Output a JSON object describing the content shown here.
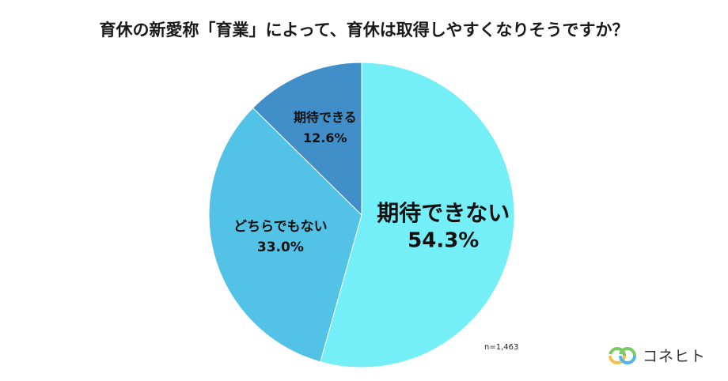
{
  "title": "育休の新愛称「育業」によって、育休は取得しやすくなりそうですか？",
  "note": "n=1,463",
  "brand": "コネヒト",
  "chart_data": {
    "type": "pie",
    "title": "育休の新愛称「育業」によって、育休は取得しやすくなりそうですか？",
    "slices": [
      {
        "label": "期待できない",
        "value": 54.3,
        "display": "54.3%",
        "color": "#74EFF8"
      },
      {
        "label": "どちらでもない",
        "value": 33.0,
        "display": "33.0%",
        "color": "#52C2E6"
      },
      {
        "label": "期待できる",
        "value": 12.6,
        "display": "12.6%",
        "color": "#418FC9"
      }
    ],
    "start_angle": "12 o'clock",
    "direction": "clockwise",
    "legend": "none"
  }
}
